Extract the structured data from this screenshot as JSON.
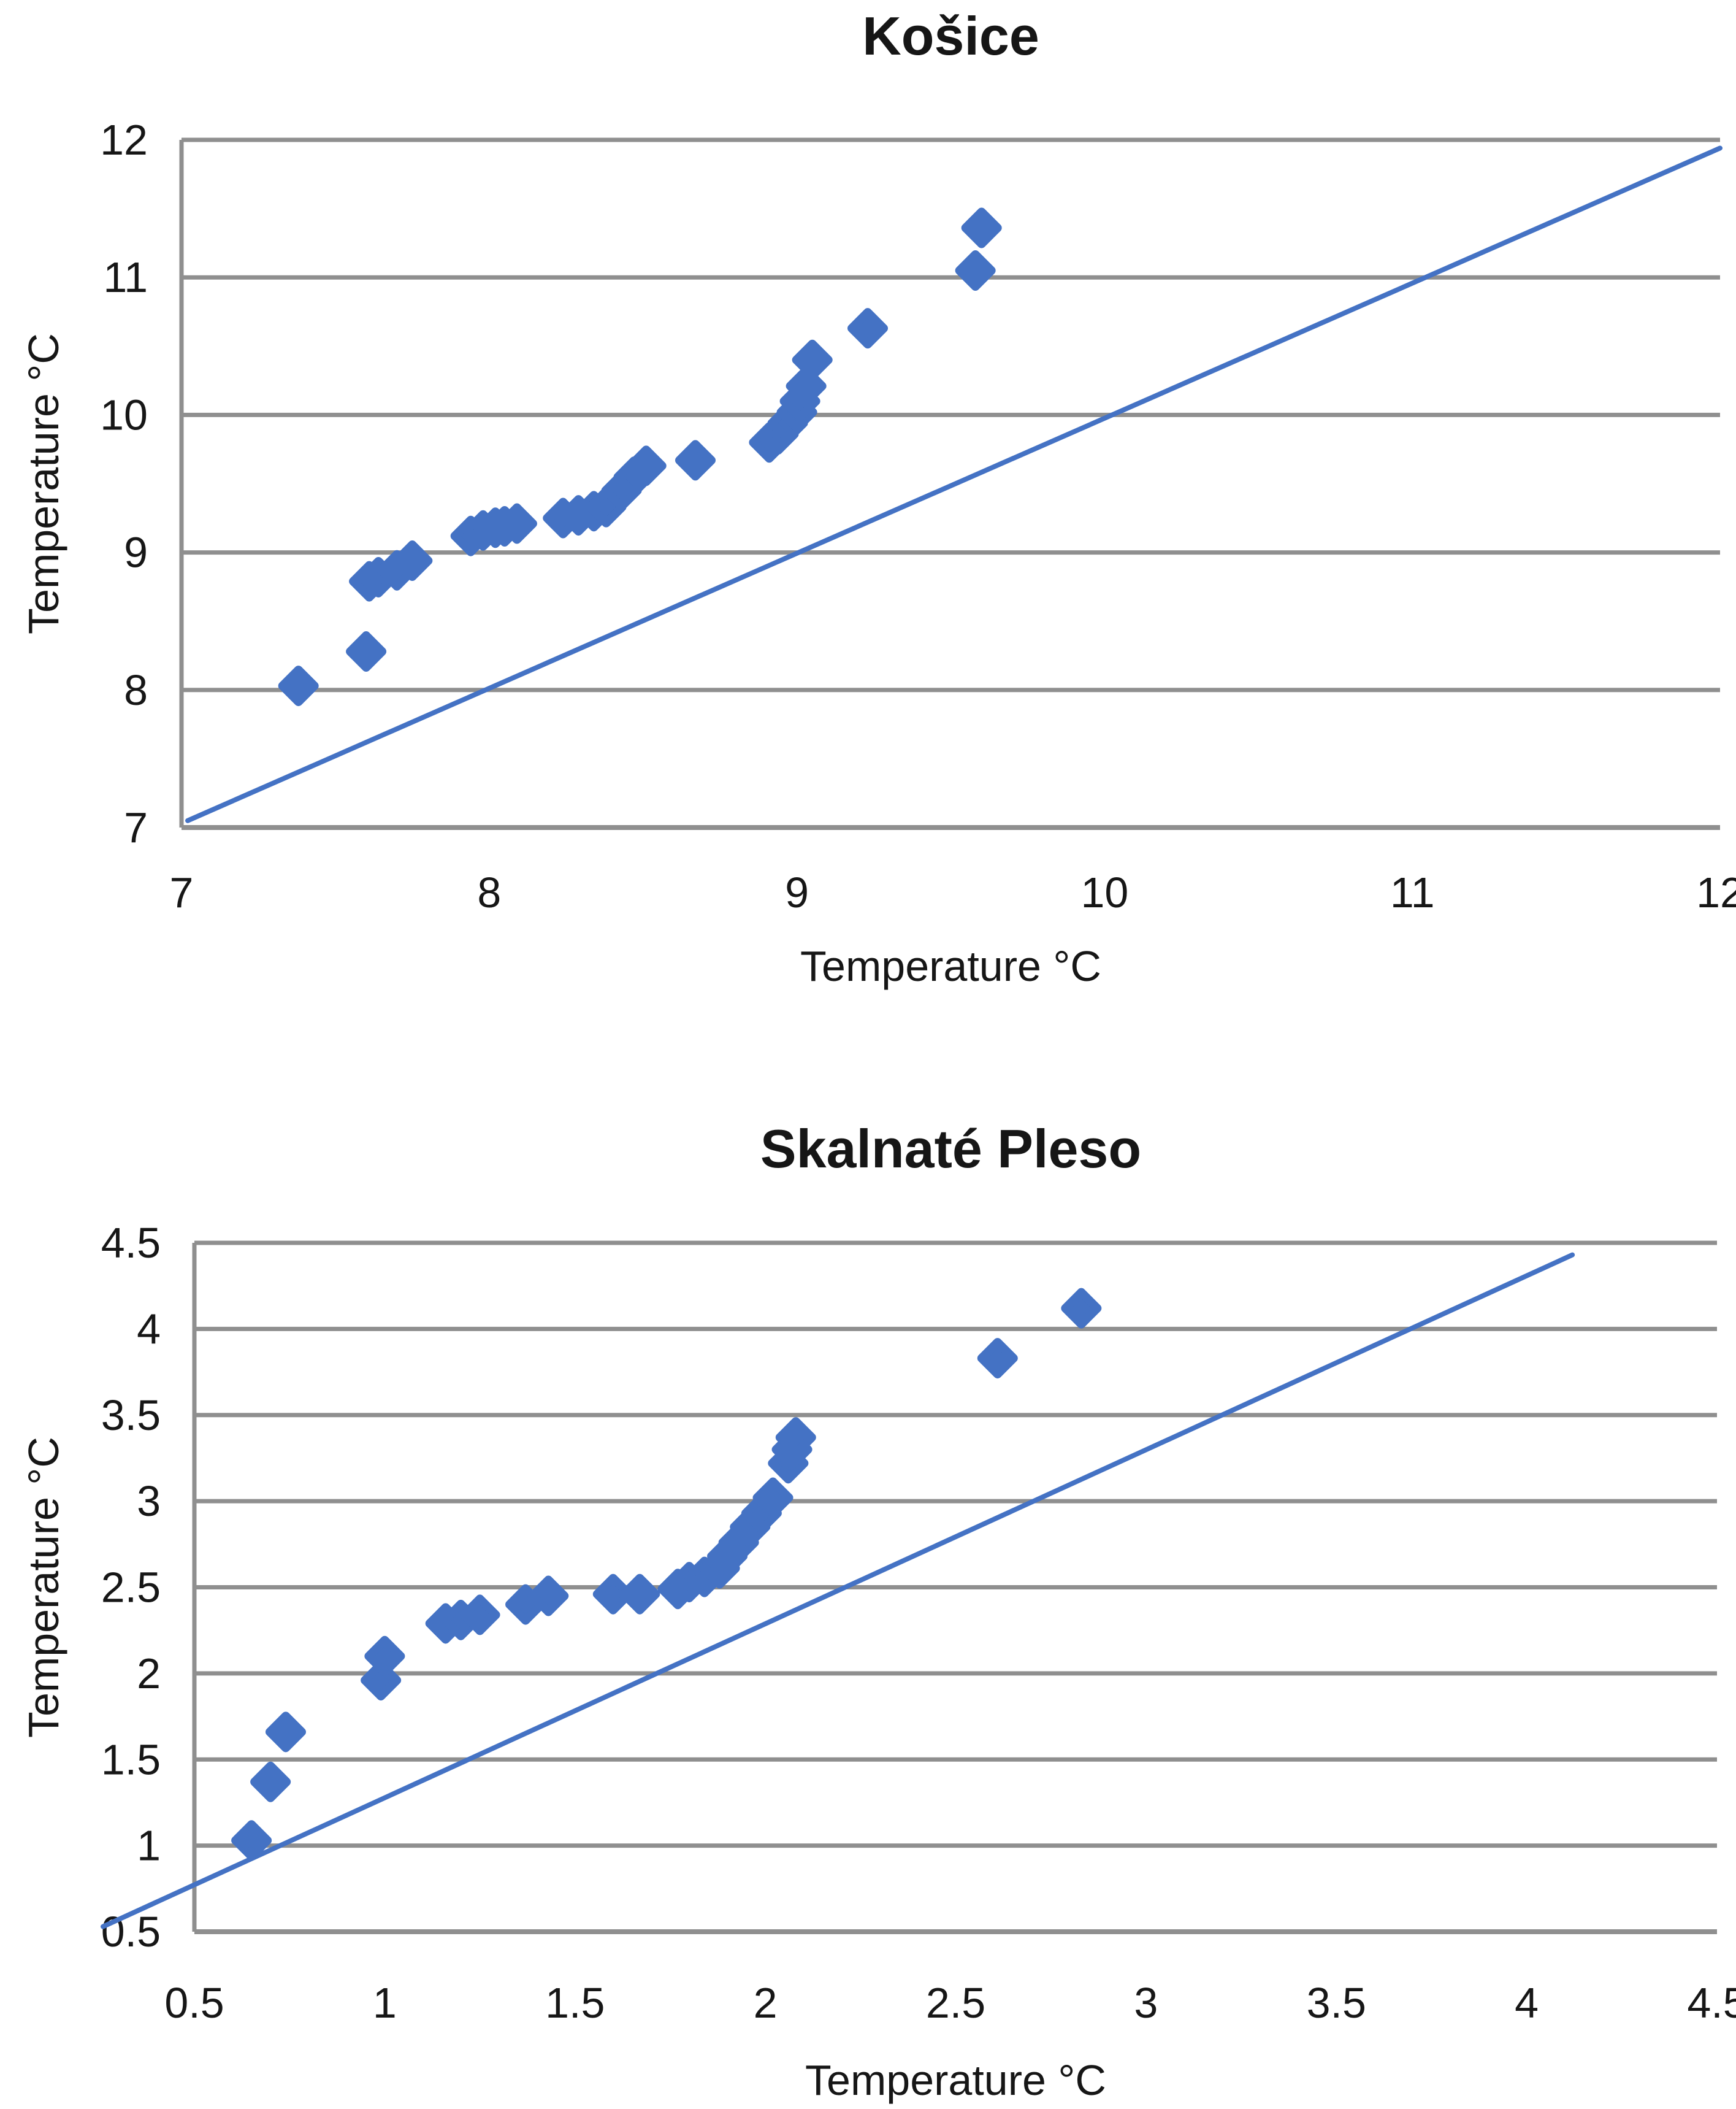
{
  "page_background": "#ffffff",
  "chart_data": [
    {
      "type": "scatter",
      "title": "Košice",
      "xlabel": "Temperature °C",
      "ylabel": "Temperature °C",
      "xlim": [
        7,
        12
      ],
      "ylim": [
        7,
        12
      ],
      "grid": "horizontal",
      "legend": "none",
      "marker": "diamond",
      "marker_color": "#4472C4",
      "line_color": "#4472C4",
      "grid_color": "#8f8f8f",
      "text_color": "#161616",
      "xticks": {
        "values": [
          7,
          8,
          9,
          10,
          11,
          12
        ],
        "labels": [
          "7",
          "8",
          "9",
          "10",
          "11",
          "12"
        ]
      },
      "yticks": {
        "values": [
          12,
          11,
          10,
          9,
          8,
          7
        ],
        "labels": [
          "12",
          "11",
          "10",
          "9",
          "8",
          "7"
        ]
      },
      "reference_line": {
        "x1": 7.02,
        "y1": 7.05,
        "x2": 12.0,
        "y2": 11.94
      },
      "points": [
        [
          7.38,
          8.03
        ],
        [
          7.6,
          8.28
        ],
        [
          7.61,
          8.79
        ],
        [
          7.64,
          8.82
        ],
        [
          7.7,
          8.87
        ],
        [
          7.75,
          8.94
        ],
        [
          7.94,
          9.12
        ],
        [
          7.98,
          9.16
        ],
        [
          8.02,
          9.18
        ],
        [
          8.05,
          9.19
        ],
        [
          8.09,
          9.21
        ],
        [
          8.24,
          9.25
        ],
        [
          8.29,
          9.27
        ],
        [
          8.34,
          9.3
        ],
        [
          8.38,
          9.33
        ],
        [
          8.43,
          9.45
        ],
        [
          8.47,
          9.55
        ],
        [
          8.51,
          9.63
        ],
        [
          8.67,
          9.67
        ],
        [
          8.91,
          9.8
        ],
        [
          8.94,
          9.86
        ],
        [
          8.97,
          9.94
        ],
        [
          9.0,
          10.02
        ],
        [
          9.01,
          10.1
        ],
        [
          9.03,
          10.21
        ],
        [
          9.05,
          10.4
        ],
        [
          9.23,
          10.63
        ],
        [
          9.58,
          11.05
        ],
        [
          9.6,
          11.36
        ]
      ]
    },
    {
      "type": "scatter",
      "title": "Skalnaté Pleso",
      "xlabel": "Temperature °C",
      "ylabel": "Temperature °C",
      "xlim": [
        0.5,
        4.5
      ],
      "ylim": [
        0.5,
        4.5
      ],
      "grid": "horizontal",
      "legend": "none",
      "marker": "diamond",
      "marker_color": "#4472C4",
      "line_color": "#4472C4",
      "grid_color": "#8f8f8f",
      "text_color": "#161616",
      "xticks": {
        "values": [
          0.5,
          1,
          1.5,
          2,
          2.5,
          3,
          3.5,
          4,
          4.5
        ],
        "labels": [
          "0.5",
          "1",
          "1.5",
          "2",
          "2.5",
          "3",
          "3.5",
          "4",
          "4.5"
        ]
      },
      "yticks": {
        "values": [
          4.5,
          4,
          3.5,
          3,
          2.5,
          2,
          1.5,
          1,
          0.5
        ],
        "labels": [
          "4.5",
          "4",
          "3.5",
          "3",
          "2.5",
          "2",
          "1.5",
          "1",
          "0.5"
        ]
      },
      "reference_line": {
        "x1": 0.26,
        "y1": 0.53,
        "x2": 4.12,
        "y2": 4.43
      },
      "points": [
        [
          0.65,
          1.03
        ],
        [
          0.7,
          1.37
        ],
        [
          0.74,
          1.66
        ],
        [
          0.99,
          1.96
        ],
        [
          1.0,
          2.1
        ],
        [
          1.16,
          2.29
        ],
        [
          1.2,
          2.31
        ],
        [
          1.25,
          2.34
        ],
        [
          1.37,
          2.4
        ],
        [
          1.43,
          2.45
        ],
        [
          1.6,
          2.46
        ],
        [
          1.67,
          2.46
        ],
        [
          1.77,
          2.49
        ],
        [
          1.8,
          2.53
        ],
        [
          1.84,
          2.56
        ],
        [
          1.88,
          2.61
        ],
        [
          1.9,
          2.68
        ],
        [
          1.93,
          2.76
        ],
        [
          1.96,
          2.85
        ],
        [
          1.99,
          2.93
        ],
        [
          2.02,
          3.02
        ],
        [
          2.06,
          3.22
        ],
        [
          2.07,
          3.3
        ],
        [
          2.08,
          3.37
        ],
        [
          2.61,
          3.83
        ],
        [
          2.83,
          4.12
        ]
      ]
    }
  ]
}
